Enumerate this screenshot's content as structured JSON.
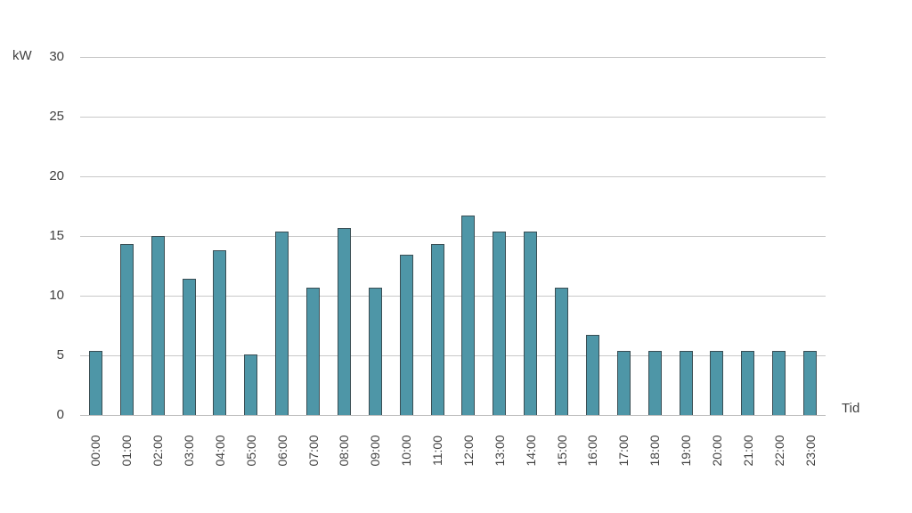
{
  "chart_data": {
    "type": "bar",
    "title": "",
    "ylabel": "kW",
    "xlabel": "Tid",
    "ylim": [
      0,
      30
    ],
    "yticks": [
      0,
      5,
      10,
      15,
      20,
      25,
      30
    ],
    "grid": true,
    "legend": false,
    "categories": [
      "00:00",
      "01:00",
      "02:00",
      "03:00",
      "04:00",
      "05:00",
      "06:00",
      "07:00",
      "08:00",
      "09:00",
      "10:00",
      "11:00",
      "12:00",
      "13:00",
      "14:00",
      "15:00",
      "16:00",
      "17:00",
      "18:00",
      "19:00",
      "20:00",
      "21:00",
      "22:00",
      "23:00"
    ],
    "values": [
      5.4,
      14.3,
      15.0,
      11.4,
      13.8,
      5.1,
      15.4,
      10.7,
      15.7,
      10.7,
      13.4,
      14.3,
      16.7,
      15.4,
      15.4,
      10.7,
      6.7,
      5.4,
      5.4,
      5.4,
      5.4,
      5.4,
      5.4,
      5.4
    ],
    "colors": {
      "bar_fill": "#4E96A7",
      "bar_border": "#3A4E54",
      "gridline": "#C8C8C8",
      "axis_line": "#BFBFBF",
      "text": "#404040"
    }
  }
}
